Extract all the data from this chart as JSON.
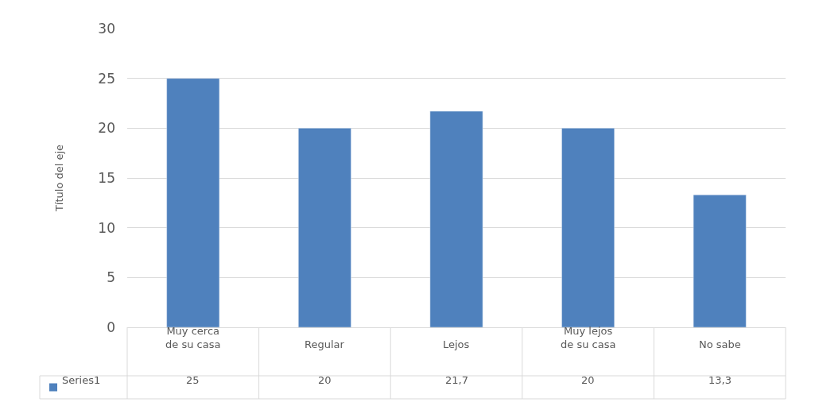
{
  "chart_data": {
    "type": "bar",
    "ylabel": "Título del eje",
    "categories": [
      "Muy cerca de su casa",
      "Regular",
      "Lejos",
      "Muy lejos de su casa",
      "No sabe"
    ],
    "series": [
      {
        "name": "Series1",
        "color": "#4f81bd",
        "values": [
          25,
          20,
          21.7,
          20,
          13.3
        ],
        "value_labels": [
          "25",
          "20",
          "21,7",
          "20",
          "13,3"
        ]
      }
    ],
    "ylim": [
      0,
      30
    ],
    "yticks": [
      0,
      5,
      10,
      15,
      20,
      25,
      30
    ],
    "grid": "y"
  }
}
